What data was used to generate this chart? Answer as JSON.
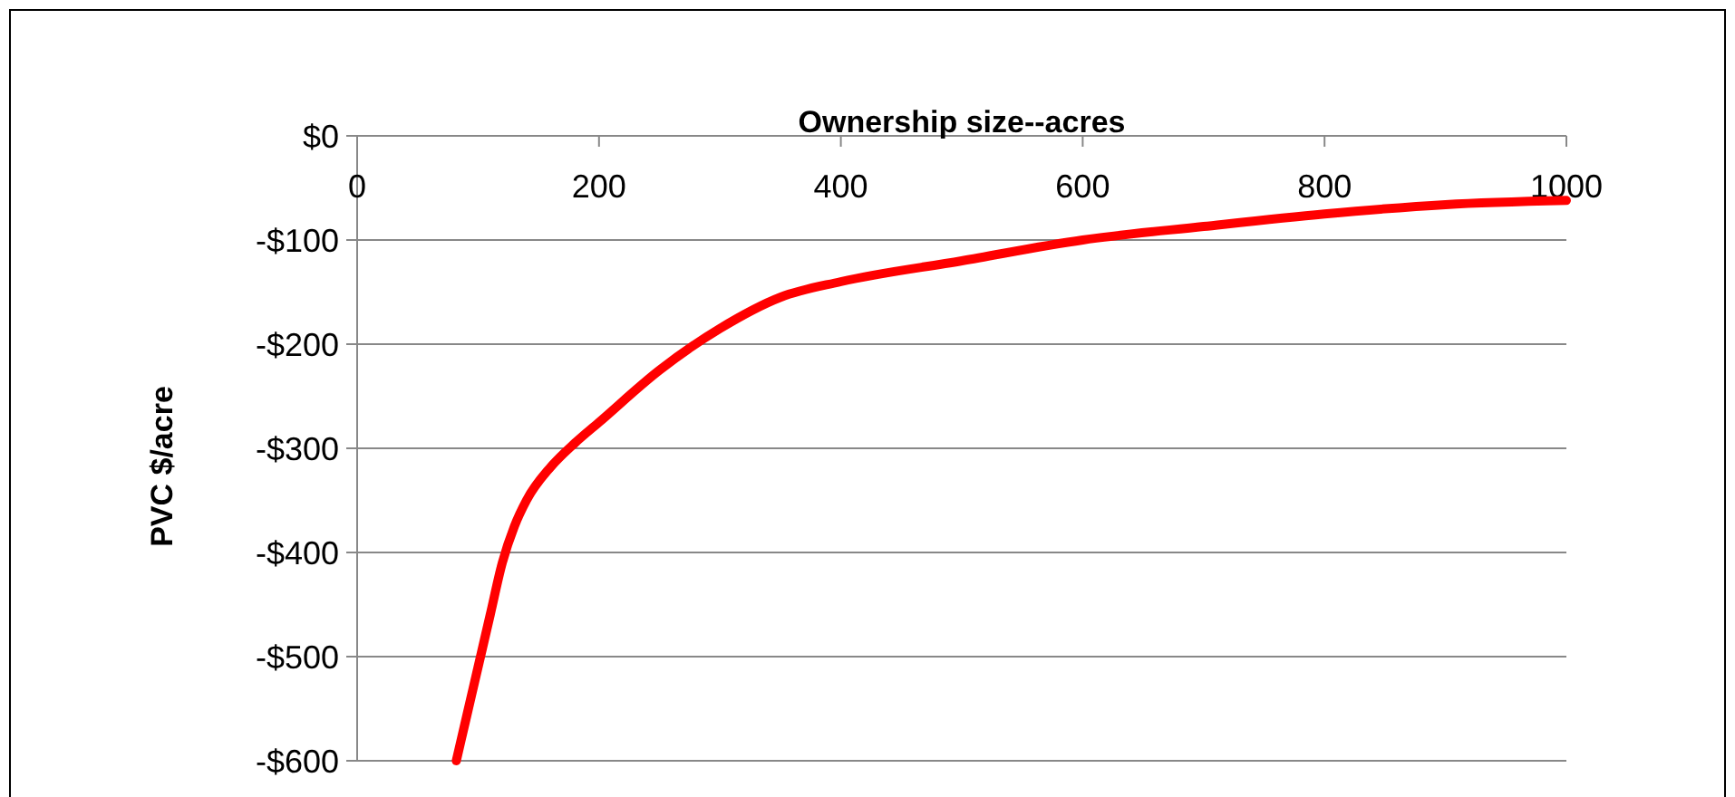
{
  "chart_data": {
    "type": "line",
    "xlabel": "Ownership size--acres",
    "ylabel": "PVC $/acre",
    "x": [
      82,
      90,
      100,
      110,
      120,
      130,
      140,
      160,
      180,
      200,
      250,
      300,
      350,
      400,
      500,
      600,
      700,
      800,
      900,
      1000
    ],
    "series": [
      {
        "color": "#ff0000",
        "values": [
          -600,
          -560,
          -510,
          -460,
          -410,
          -375,
          -350,
          -318,
          -295,
          -275,
          -225,
          -185,
          -155,
          -140,
          -120,
          -100,
          -87,
          -75,
          -66,
          -62
        ]
      }
    ],
    "xlim": [
      0,
      1000
    ],
    "xticks": [
      0,
      200,
      400,
      600,
      800,
      1000
    ],
    "ylim": [
      -600,
      0
    ],
    "yticks": [
      {
        "value": 0,
        "label": "$0"
      },
      {
        "value": -100,
        "label": "-$100"
      },
      {
        "value": -200,
        "label": "-$200"
      },
      {
        "value": -300,
        "label": "-$300"
      },
      {
        "value": -400,
        "label": "-$400"
      },
      {
        "value": -500,
        "label": "-$500"
      },
      {
        "value": -600,
        "label": "-$600"
      }
    ],
    "grid": "y",
    "marker": "none",
    "line_style": "solid"
  }
}
